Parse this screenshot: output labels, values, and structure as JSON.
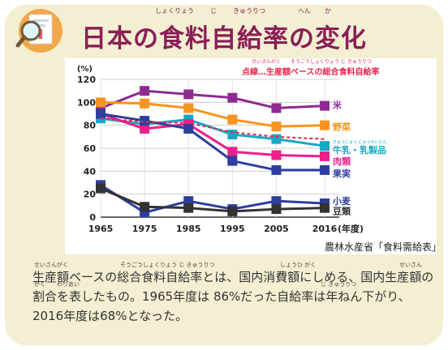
{
  "title": {
    "text": "日本の食料自給率の変化",
    "ruby": [
      "しょくりょう",
      "じ",
      "きゅうりつ",
      "へん",
      "か"
    ]
  },
  "source": "農林水産省「食料需給表」",
  "description": {
    "text": "生産額ベースの総合食料自給率とは、国内消費額にしめる、国内生産額の割合を表したもの。1965年度は 86%だった自給率は年ねん下がり、2016年度は68%となった。",
    "ruby": [
      "せいさんがく",
      "そうごうしょくりょう じ きゅうりつ",
      "しょうひ がく",
      "せいさん",
      "がく",
      "わりあい",
      "じ きゅうりつ"
    ]
  },
  "icon": "document-magnifier-icon",
  "colors": {
    "title": "#8a1f57",
    "panel": "#f4efd2",
    "米": "#8e2a91",
    "野菜": "#f7941d",
    "牛乳・乳製品": "#17a8c4",
    "肉類": "#ec1f8c",
    "果実": "#2e3e9e",
    "小麦": "#2e3e9e",
    "豆類": "#333333",
    "総合": "#e8264d"
  },
  "chart_data": {
    "type": "line",
    "x": [
      1965,
      1975,
      1985,
      1995,
      2005,
      2016
    ],
    "xlabel": "(年度)",
    "ylabel": "(%)",
    "ylim": [
      0,
      120
    ],
    "yticks": [
      0,
      20,
      40,
      60,
      80,
      100,
      120
    ],
    "grid": true,
    "legend_placement": "right",
    "annotation": "点線…生産額ベースの総合食料自給率",
    "annotation_ruby": [
      "せいさんがく",
      "そうごうしょくりょう じ きゅうりつ"
    ],
    "series": [
      {
        "name": "米",
        "values": [
          95,
          110,
          107,
          104,
          95,
          97
        ]
      },
      {
        "name": "野菜",
        "values": [
          100,
          99,
          95,
          85,
          79,
          80
        ]
      },
      {
        "name": "牛乳・乳製品",
        "ruby": "ぎゅうにゅう にゅうせいひん",
        "values": [
          86,
          81,
          85,
          72,
          68,
          62
        ]
      },
      {
        "name": "肉類",
        "values": [
          90,
          77,
          81,
          57,
          54,
          53
        ]
      },
      {
        "name": "果実",
        "values": [
          90,
          84,
          77,
          49,
          41,
          41
        ]
      },
      {
        "name": "小麦",
        "values": [
          28,
          4,
          14,
          7,
          14,
          12
        ]
      },
      {
        "name": "豆類",
        "values": [
          25,
          9,
          8,
          5,
          7,
          8
        ]
      },
      {
        "name": "",
        "dashed": true,
        "values": [
          86,
          83,
          82,
          74,
          70,
          68
        ]
      }
    ]
  }
}
